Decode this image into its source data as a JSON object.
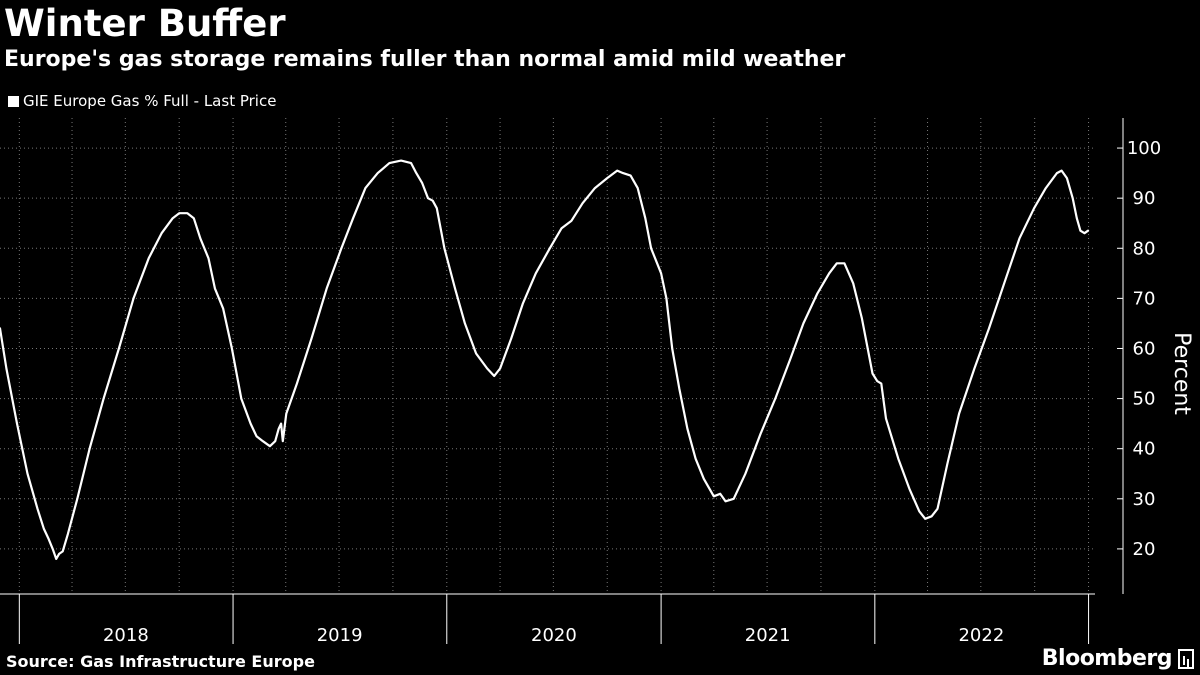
{
  "header": {
    "title": "Winter Buffer",
    "subtitle": "Europe's gas storage remains fuller than normal amid mild weather"
  },
  "footer": {
    "source": "Source: Gas Infrastructure Europe",
    "brand": "Bloomberg"
  },
  "chart_data": {
    "type": "line",
    "ylabel": "Percent",
    "xlabel": "",
    "ylim": [
      11,
      106
    ],
    "yticks": [
      20,
      30,
      40,
      50,
      60,
      70,
      80,
      90,
      100
    ],
    "xlim": [
      "2017-11-29",
      "2023-01-12"
    ],
    "year_labels": [
      "2018",
      "2019",
      "2020",
      "2021",
      "2022"
    ],
    "grid": true,
    "legend_position": "top-left",
    "line_color": "#ffffff",
    "series": [
      {
        "name": "GIE Europe Gas % Full - Last Price",
        "points": [
          [
            "2017-11-29",
            64
          ],
          [
            "2017-12-10",
            56
          ],
          [
            "2017-12-28",
            45
          ],
          [
            "2018-01-15",
            35
          ],
          [
            "2018-02-01",
            28
          ],
          [
            "2018-02-12",
            24
          ],
          [
            "2018-02-20",
            22
          ],
          [
            "2018-02-27",
            20
          ],
          [
            "2018-03-05",
            18
          ],
          [
            "2018-03-10",
            19
          ],
          [
            "2018-03-16",
            19.5
          ],
          [
            "2018-03-25",
            23
          ],
          [
            "2018-04-10",
            30
          ],
          [
            "2018-05-01",
            40
          ],
          [
            "2018-05-25",
            50
          ],
          [
            "2018-06-20",
            60
          ],
          [
            "2018-07-15",
            70
          ],
          [
            "2018-08-10",
            78
          ],
          [
            "2018-09-01",
            83
          ],
          [
            "2018-09-20",
            86
          ],
          [
            "2018-10-01",
            87
          ],
          [
            "2018-10-15",
            87
          ],
          [
            "2018-10-26",
            86
          ],
          [
            "2018-11-06",
            82
          ],
          [
            "2018-11-20",
            78
          ],
          [
            "2018-12-01",
            72
          ],
          [
            "2018-12-15",
            68
          ],
          [
            "2018-12-30",
            60
          ],
          [
            "2019-01-15",
            50
          ],
          [
            "2019-01-31",
            45
          ],
          [
            "2019-02-10",
            42.5
          ],
          [
            "2019-02-21",
            41.5
          ],
          [
            "2019-03-05",
            40.5
          ],
          [
            "2019-03-14",
            41.5
          ],
          [
            "2019-03-20",
            44
          ],
          [
            "2019-03-24",
            45
          ],
          [
            "2019-03-27",
            41.5
          ],
          [
            "2019-04-02",
            47
          ],
          [
            "2019-04-20",
            53
          ],
          [
            "2019-05-15",
            62
          ],
          [
            "2019-06-10",
            72
          ],
          [
            "2019-07-05",
            80
          ],
          [
            "2019-07-25",
            86
          ],
          [
            "2019-08-15",
            92
          ],
          [
            "2019-09-05",
            95
          ],
          [
            "2019-09-25",
            97
          ],
          [
            "2019-10-15",
            97.5
          ],
          [
            "2019-11-01",
            97
          ],
          [
            "2019-11-10",
            95
          ],
          [
            "2019-11-20",
            93
          ],
          [
            "2019-11-30",
            90
          ],
          [
            "2019-12-08",
            89.5
          ],
          [
            "2019-12-15",
            88
          ],
          [
            "2019-12-28",
            80
          ],
          [
            "2020-01-15",
            72
          ],
          [
            "2020-02-01",
            65
          ],
          [
            "2020-02-20",
            59
          ],
          [
            "2020-03-10",
            56
          ],
          [
            "2020-03-22",
            54.5
          ],
          [
            "2020-04-01",
            56
          ],
          [
            "2020-04-20",
            62
          ],
          [
            "2020-05-10",
            69
          ],
          [
            "2020-06-01",
            75
          ],
          [
            "2020-06-25",
            80
          ],
          [
            "2020-07-15",
            84
          ],
          [
            "2020-08-01",
            85.5
          ],
          [
            "2020-08-20",
            89
          ],
          [
            "2020-09-10",
            92
          ],
          [
            "2020-10-01",
            94
          ],
          [
            "2020-10-18",
            95.5
          ],
          [
            "2020-10-28",
            95
          ],
          [
            "2020-11-10",
            94.5
          ],
          [
            "2020-11-22",
            92
          ],
          [
            "2020-12-05",
            86
          ],
          [
            "2020-12-15",
            80
          ],
          [
            "2021-01-01",
            75
          ],
          [
            "2021-01-10",
            70
          ],
          [
            "2021-01-20",
            60
          ],
          [
            "2021-02-01",
            52
          ],
          [
            "2021-02-15",
            44
          ],
          [
            "2021-03-01",
            38
          ],
          [
            "2021-03-15",
            34
          ],
          [
            "2021-04-01",
            30.5
          ],
          [
            "2021-04-12",
            31
          ],
          [
            "2021-04-21",
            29.5
          ],
          [
            "2021-05-05",
            30
          ],
          [
            "2021-05-25",
            35
          ],
          [
            "2021-06-20",
            43
          ],
          [
            "2021-07-15",
            50
          ],
          [
            "2021-08-10",
            58
          ],
          [
            "2021-09-01",
            65
          ],
          [
            "2021-09-25",
            71
          ],
          [
            "2021-10-15",
            75
          ],
          [
            "2021-10-28",
            77
          ],
          [
            "2021-11-10",
            77
          ],
          [
            "2021-11-25",
            73
          ],
          [
            "2021-12-10",
            66
          ],
          [
            "2021-12-28",
            55
          ],
          [
            "2022-01-05",
            53.5
          ],
          [
            "2022-01-12",
            53
          ],
          [
            "2022-01-20",
            46
          ],
          [
            "2022-02-10",
            38
          ],
          [
            "2022-03-01",
            32
          ],
          [
            "2022-03-18",
            27.5
          ],
          [
            "2022-03-28",
            26
          ],
          [
            "2022-04-08",
            26.5
          ],
          [
            "2022-04-18",
            28
          ],
          [
            "2022-05-05",
            37
          ],
          [
            "2022-05-25",
            47
          ],
          [
            "2022-06-20",
            56
          ],
          [
            "2022-07-15",
            64
          ],
          [
            "2022-08-10",
            73
          ],
          [
            "2022-09-05",
            82
          ],
          [
            "2022-09-30",
            88
          ],
          [
            "2022-10-20",
            92
          ],
          [
            "2022-11-08",
            95
          ],
          [
            "2022-11-16",
            95.5
          ],
          [
            "2022-11-25",
            94
          ],
          [
            "2022-12-05",
            90
          ],
          [
            "2022-12-12",
            86
          ],
          [
            "2022-12-18",
            83.5
          ],
          [
            "2022-12-25",
            83
          ],
          [
            "2022-12-31",
            83.5
          ]
        ]
      }
    ]
  }
}
